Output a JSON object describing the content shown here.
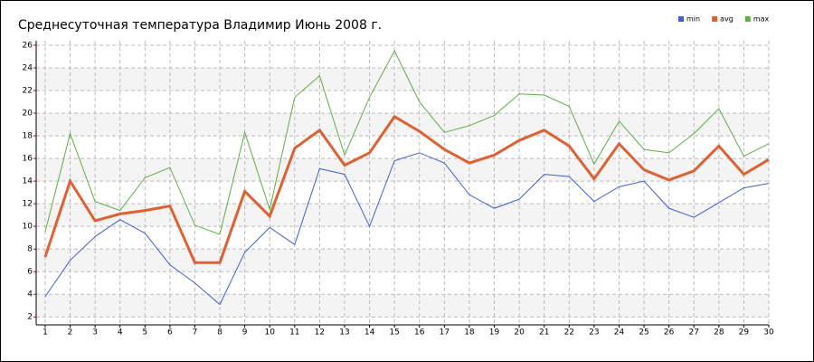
{
  "chart_data": {
    "type": "line",
    "title": "Среднесуточная температура Владимир  Июнь 2008 г.",
    "x": [
      1,
      2,
      3,
      4,
      5,
      6,
      7,
      8,
      9,
      10,
      11,
      12,
      13,
      14,
      15,
      16,
      17,
      18,
      19,
      20,
      21,
      22,
      23,
      24,
      25,
      26,
      27,
      28,
      29,
      30
    ],
    "xlim": [
      0.64,
      30
    ],
    "ylim": [
      1.3,
      26.4
    ],
    "yticks": [
      2,
      4,
      6,
      8,
      10,
      12,
      14,
      16,
      18,
      20,
      22,
      24,
      26
    ],
    "grid": true,
    "legend": "top-right",
    "series": [
      {
        "name": "min",
        "color": "#3a5fd8",
        "values": [
          3.8,
          7.0,
          9.1,
          10.6,
          9.4,
          6.6,
          5.0,
          3.1,
          7.7,
          9.9,
          8.4,
          15.1,
          14.6,
          10.0,
          15.8,
          16.5,
          15.6,
          12.8,
          11.6,
          12.4,
          14.6,
          14.4,
          12.2,
          13.5,
          14.0,
          11.6,
          10.8,
          12.1,
          13.4,
          13.8
        ]
      },
      {
        "name": "avg",
        "color": "#e06030",
        "values": [
          7.3,
          14.0,
          10.5,
          11.1,
          11.4,
          11.8,
          6.8,
          6.8,
          13.1,
          10.9,
          16.9,
          18.5,
          15.4,
          16.5,
          19.7,
          18.4,
          16.8,
          15.6,
          16.3,
          17.6,
          18.5,
          17.1,
          14.2,
          17.3,
          15.0,
          14.1,
          14.9,
          17.1,
          14.6,
          15.9
        ]
      },
      {
        "name": "max",
        "color": "#5cb040",
        "values": [
          9.5,
          18.2,
          12.2,
          11.4,
          14.3,
          15.2,
          10.1,
          9.3,
          18.3,
          11.5,
          21.4,
          23.3,
          16.3,
          21.4,
          25.5,
          21.0,
          18.3,
          18.9,
          19.8,
          21.7,
          21.6,
          20.6,
          15.5,
          19.3,
          16.8,
          16.5,
          18.2,
          20.4,
          16.2,
          17.3
        ]
      }
    ]
  }
}
